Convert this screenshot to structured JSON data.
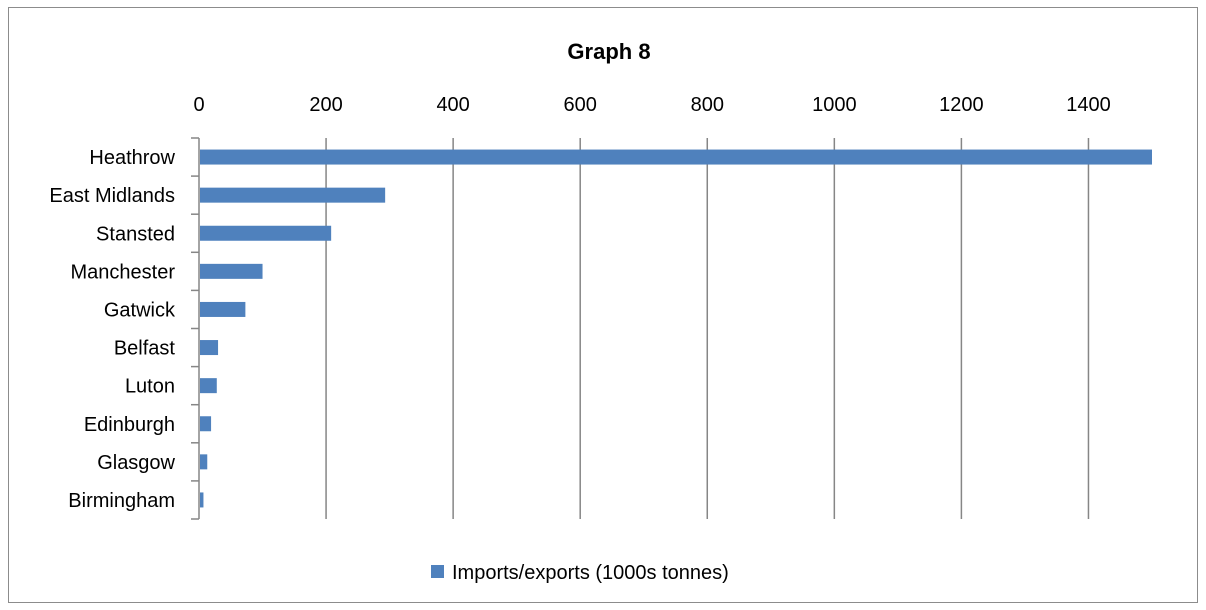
{
  "chart_data": {
    "type": "bar",
    "orientation": "horizontal",
    "title": "Graph 8",
    "categories": [
      "Heathrow",
      "East Midlands",
      "Stansted",
      "Manchester",
      "Gatwick",
      "Belfast",
      "Luton",
      "Edinburgh",
      "Glasgow",
      "Birmingham"
    ],
    "series": [
      {
        "name": "Imports/exports (1000s tonnes)",
        "values": [
          1500,
          293,
          208,
          100,
          73,
          30,
          28,
          19,
          13,
          7
        ],
        "color": "#4f81bd"
      }
    ],
    "xlim": [
      0,
      1500
    ],
    "xticks": [
      0,
      200,
      400,
      600,
      800,
      1000,
      1200,
      1400
    ],
    "xaxis_position": "top",
    "grid": "vertical",
    "legend_position": "bottom"
  }
}
